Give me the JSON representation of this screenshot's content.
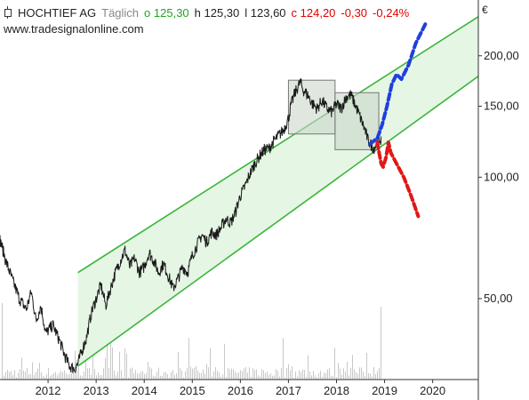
{
  "header": {
    "name": "HOCHTIEF AG",
    "period": "Täglich",
    "open": "o 125,30",
    "high": "h 125,30",
    "low": "l 123,60",
    "close": "c 124,20",
    "change": "-0,30",
    "change_pct": "-0,24%"
  },
  "source": "www.tradesignalonline.com",
  "colors": {
    "price_line": "#1a1a1a",
    "channel_line": "#3ab53a",
    "channel_fill": "#e5f6e5",
    "volume": "#c8c8c8",
    "box_fill": "#c9d7c9",
    "bull_scenario": "#1f3fe0",
    "bear_scenario": "#e01818",
    "header_up": "#1fa51f",
    "header_down": "#e00000"
  },
  "chart_data": {
    "type": "line",
    "title": "HOCHTIEF AG",
    "currency": "€",
    "y_scale": "log",
    "y_ticks": [
      {
        "value": 200,
        "label": "200,00"
      },
      {
        "value": 150,
        "label": "150,00"
      },
      {
        "value": 100,
        "label": "100,00"
      },
      {
        "value": 50,
        "label": "50,00"
      }
    ],
    "x_ticks": [
      {
        "value": 2012,
        "label": "2012"
      },
      {
        "value": 2013,
        "label": "2013"
      },
      {
        "value": 2014,
        "label": "2014"
      },
      {
        "value": 2015,
        "label": "2015"
      },
      {
        "value": 2016,
        "label": "2016"
      },
      {
        "value": 2017,
        "label": "2017"
      },
      {
        "value": 2018,
        "label": "2018"
      },
      {
        "value": 2019,
        "label": "2019"
      },
      {
        "value": 2020,
        "label": "2020"
      }
    ],
    "xlim": [
      2011.0,
      2020.95
    ],
    "ylim": [
      31.5,
      275
    ],
    "price": {
      "name": "HOCHTIEF AG",
      "points": [
        [
          2011.0,
          70
        ],
        [
          2011.12,
          62
        ],
        [
          2011.25,
          56
        ],
        [
          2011.4,
          50
        ],
        [
          2011.55,
          47
        ],
        [
          2011.65,
          52
        ],
        [
          2011.75,
          44
        ],
        [
          2011.85,
          48
        ],
        [
          2011.95,
          41
        ],
        [
          2012.1,
          43
        ],
        [
          2012.25,
          39
        ],
        [
          2012.35,
          36
        ],
        [
          2012.45,
          34
        ],
        [
          2012.55,
          33.5
        ],
        [
          2012.62,
          34.5
        ],
        [
          2012.7,
          37
        ],
        [
          2012.8,
          40
        ],
        [
          2012.9,
          46
        ],
        [
          2013.0,
          50
        ],
        [
          2013.1,
          54
        ],
        [
          2013.2,
          48
        ],
        [
          2013.3,
          53
        ],
        [
          2013.4,
          58
        ],
        [
          2013.5,
          62
        ],
        [
          2013.6,
          66
        ],
        [
          2013.7,
          60
        ],
        [
          2013.8,
          63
        ],
        [
          2013.9,
          58
        ],
        [
          2014.0,
          60
        ],
        [
          2014.1,
          65
        ],
        [
          2014.2,
          62
        ],
        [
          2014.3,
          58
        ],
        [
          2014.4,
          61
        ],
        [
          2014.5,
          57
        ],
        [
          2014.6,
          53
        ],
        [
          2014.7,
          56
        ],
        [
          2014.8,
          60
        ],
        [
          2014.9,
          58
        ],
        [
          2015.0,
          64
        ],
        [
          2015.1,
          68
        ],
        [
          2015.2,
          72
        ],
        [
          2015.3,
          69
        ],
        [
          2015.4,
          73
        ],
        [
          2015.5,
          72
        ],
        [
          2015.6,
          75
        ],
        [
          2015.7,
          79
        ],
        [
          2015.8,
          77
        ],
        [
          2015.9,
          82
        ],
        [
          2016.0,
          90
        ],
        [
          2016.1,
          95
        ],
        [
          2016.2,
          102
        ],
        [
          2016.3,
          108
        ],
        [
          2016.4,
          113
        ],
        [
          2016.5,
          117
        ],
        [
          2016.6,
          118
        ],
        [
          2016.7,
          123
        ],
        [
          2016.8,
          127
        ],
        [
          2016.9,
          131
        ],
        [
          2017.0,
          140
        ],
        [
          2017.05,
          150
        ],
        [
          2017.12,
          160
        ],
        [
          2017.2,
          168
        ],
        [
          2017.25,
          172
        ],
        [
          2017.3,
          165
        ],
        [
          2017.4,
          160
        ],
        [
          2017.5,
          152
        ],
        [
          2017.6,
          148
        ],
        [
          2017.7,
          155
        ],
        [
          2017.8,
          148
        ],
        [
          2017.9,
          145
        ],
        [
          2018.0,
          152
        ],
        [
          2018.1,
          148
        ],
        [
          2018.2,
          158
        ],
        [
          2018.3,
          160
        ],
        [
          2018.4,
          150
        ],
        [
          2018.5,
          140
        ],
        [
          2018.6,
          130
        ],
        [
          2018.65,
          124
        ],
        [
          2018.7,
          121
        ],
        [
          2018.78,
          118
        ],
        [
          2018.83,
          121
        ],
        [
          2018.88,
          124
        ],
        [
          2018.93,
          124.2
        ]
      ]
    },
    "channel": {
      "upper": [
        [
          2012.62,
          58
        ],
        [
          2020.95,
          250
        ]
      ],
      "lower": [
        [
          2012.62,
          34
        ],
        [
          2020.95,
          178
        ]
      ]
    },
    "boxes": [
      {
        "x": [
          2017.0,
          2017.97
        ],
        "y": [
          128,
          174
        ]
      },
      {
        "x": [
          2017.97,
          2018.88
        ],
        "y": [
          117,
          162
        ]
      }
    ],
    "scenarios": [
      {
        "name": "bull",
        "points": [
          [
            2018.7,
            121
          ],
          [
            2018.85,
            125
          ],
          [
            2018.95,
            135
          ],
          [
            2019.05,
            150
          ],
          [
            2019.15,
            170
          ],
          [
            2019.25,
            180
          ],
          [
            2019.35,
            175
          ],
          [
            2019.5,
            190
          ],
          [
            2019.65,
            215
          ],
          [
            2019.85,
            240
          ]
        ]
      },
      {
        "name": "bear",
        "points": [
          [
            2018.85,
            122
          ],
          [
            2018.88,
            116
          ],
          [
            2018.93,
            108
          ],
          [
            2018.97,
            106
          ],
          [
            2019.03,
            112
          ],
          [
            2019.08,
            122
          ],
          [
            2019.13,
            115
          ],
          [
            2019.25,
            108
          ],
          [
            2019.4,
            100
          ],
          [
            2019.55,
            90
          ],
          [
            2019.7,
            80
          ]
        ]
      }
    ]
  }
}
